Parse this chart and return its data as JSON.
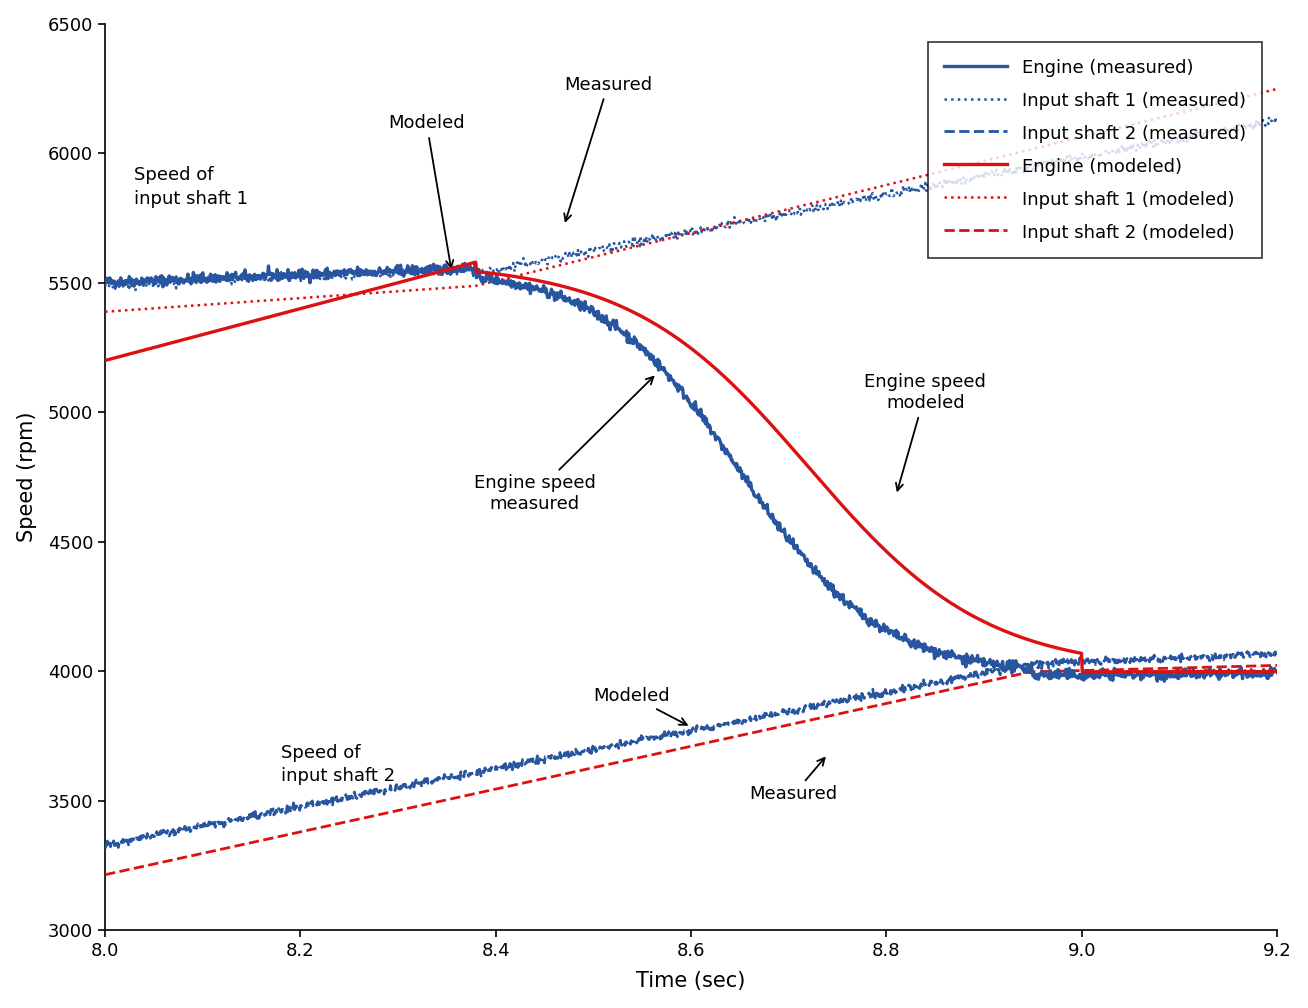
{
  "title": "",
  "xlabel": "Time (sec)",
  "ylabel": "Speed (rpm)",
  "xlim": [
    8.0,
    9.2
  ],
  "ylim": [
    3000,
    6500
  ],
  "xticks": [
    8.0,
    8.2,
    8.4,
    8.6,
    8.8,
    9.0,
    9.2
  ],
  "yticks": [
    3000,
    3500,
    4000,
    4500,
    5000,
    5500,
    6000,
    6500
  ],
  "blue_color": "#2855a0",
  "red_color": "#dd1111",
  "legend_entries": [
    "Engine (measured)",
    "Input shaft 1 (measured)",
    "Input shaft 2 (measured)",
    "Engine (modeled)",
    "Input shaft 1 (modeled)",
    "Input shaft 2 (modeled)"
  ]
}
